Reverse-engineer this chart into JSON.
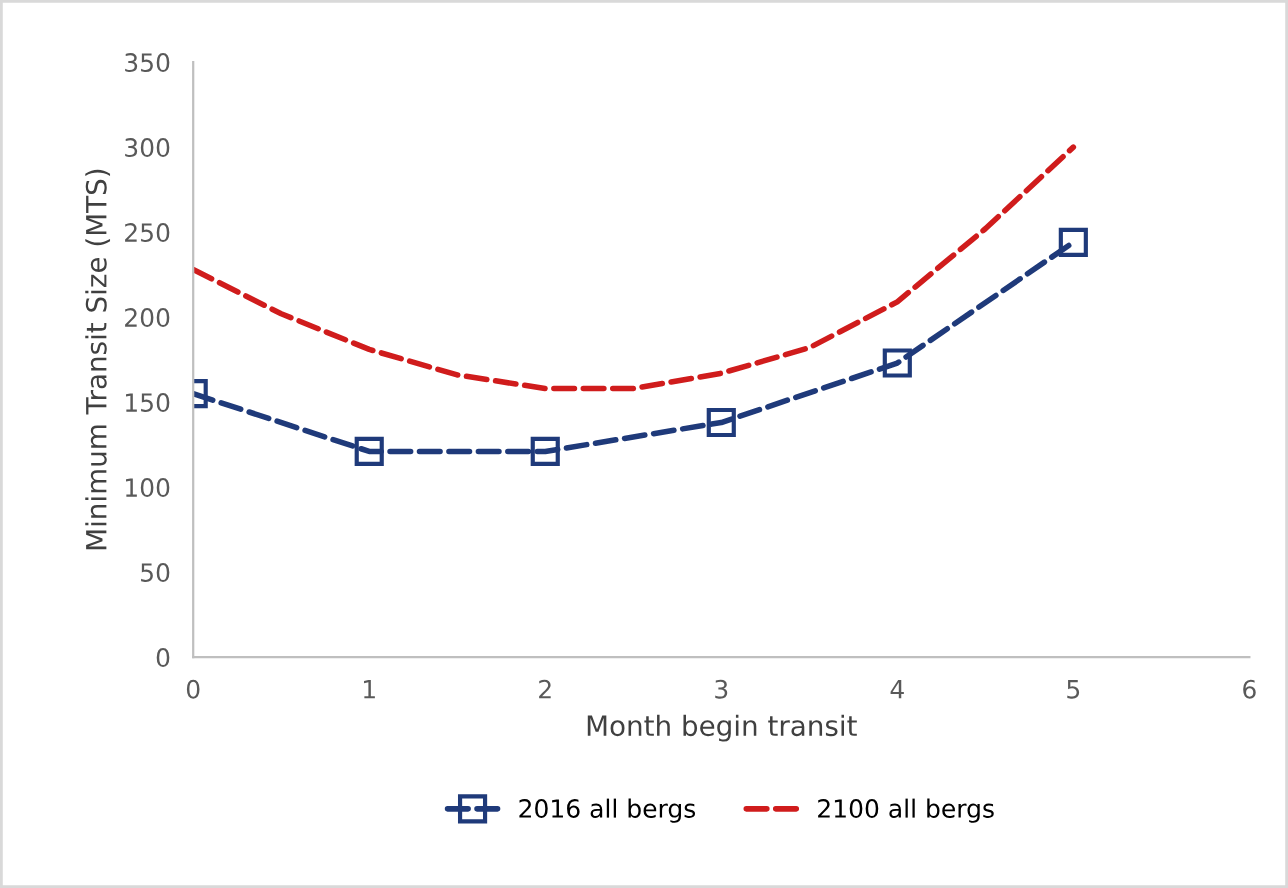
{
  "chart_data": {
    "type": "line",
    "xlabel": "Month begin transit",
    "ylabel": "Minimum Transit Size (MTS)",
    "xlim": [
      0,
      6
    ],
    "xticks": [
      0,
      1,
      2,
      3,
      4,
      5,
      6
    ],
    "ylim": [
      0,
      350
    ],
    "yticks": [
      0,
      50,
      100,
      150,
      200,
      250,
      300,
      350
    ],
    "grid": false,
    "legend": "bottom",
    "line_style": "dashed",
    "series": [
      {
        "name": "2016 all bergs",
        "color": "#1f3a7a",
        "marker": "square",
        "x": [
          0,
          1,
          2,
          3,
          4,
          5
        ],
        "values": [
          155,
          121,
          121,
          138,
          173,
          244
        ]
      },
      {
        "name": "2100 all bergs",
        "color": "#d01c1c",
        "marker": "none",
        "x": [
          0,
          0.5,
          1,
          1.5,
          2,
          2.5,
          3,
          3.5,
          4,
          4.5,
          5
        ],
        "values": [
          228,
          202,
          181,
          166,
          158,
          158,
          167,
          182,
          209,
          252,
          300
        ]
      }
    ]
  }
}
